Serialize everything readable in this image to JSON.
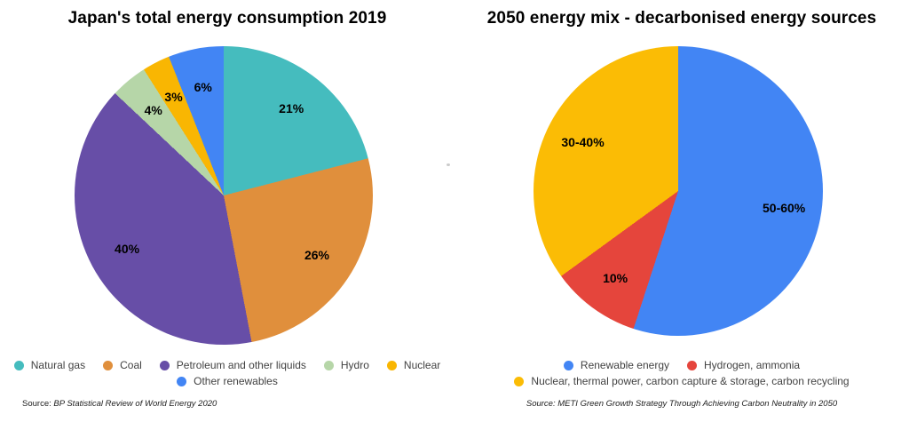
{
  "page": {
    "background": "#ffffff"
  },
  "chart_data": [
    {
      "type": "pie",
      "title": "Japan's total energy consumption 2019",
      "start_angle_deg": 0,
      "direction": "clockwise",
      "slices": [
        {
          "label": "Natural gas",
          "value": 21,
          "display": "21%",
          "color": "#45BCBE"
        },
        {
          "label": "Coal",
          "value": 26,
          "display": "26%",
          "color": "#E08F3C"
        },
        {
          "label": "Petroleum and other liquids",
          "value": 40,
          "display": "40%",
          "color": "#674EA7"
        },
        {
          "label": "Hydro",
          "value": 4,
          "display": "4%",
          "color": "#B6D6A8"
        },
        {
          "label": "Nuclear",
          "value": 3,
          "display": "3%",
          "color": "#F9B602"
        },
        {
          "label": "Other renewables",
          "value": 6,
          "display": "6%",
          "color": "#4285F4"
        }
      ],
      "legend_rows": [
        [
          0,
          1,
          2,
          3,
          4
        ],
        [
          5
        ]
      ],
      "source_prefix": "Source: ",
      "source": "BP Statistical Review of World Energy 2020"
    },
    {
      "type": "pie",
      "title": "2050 energy mix - decarbonised energy sources",
      "start_angle_deg": 0,
      "direction": "clockwise",
      "slices": [
        {
          "label": "Renewable energy",
          "value": 55,
          "display": "50-60%",
          "color": "#4285F4"
        },
        {
          "label": "Hydrogen, ammonia",
          "value": 10,
          "display": "10%",
          "color": "#E5453C"
        },
        {
          "label": "Nuclear, thermal power, carbon capture & storage, carbon recycling",
          "value": 35,
          "display": "30-40%",
          "color": "#FBBC05"
        }
      ],
      "legend_rows": [
        [
          0,
          1
        ],
        [
          2
        ]
      ],
      "source_prefix": "Source: ",
      "source": "METI Green Growth Strategy Through Achieving Carbon Neutrality in 2050"
    }
  ]
}
